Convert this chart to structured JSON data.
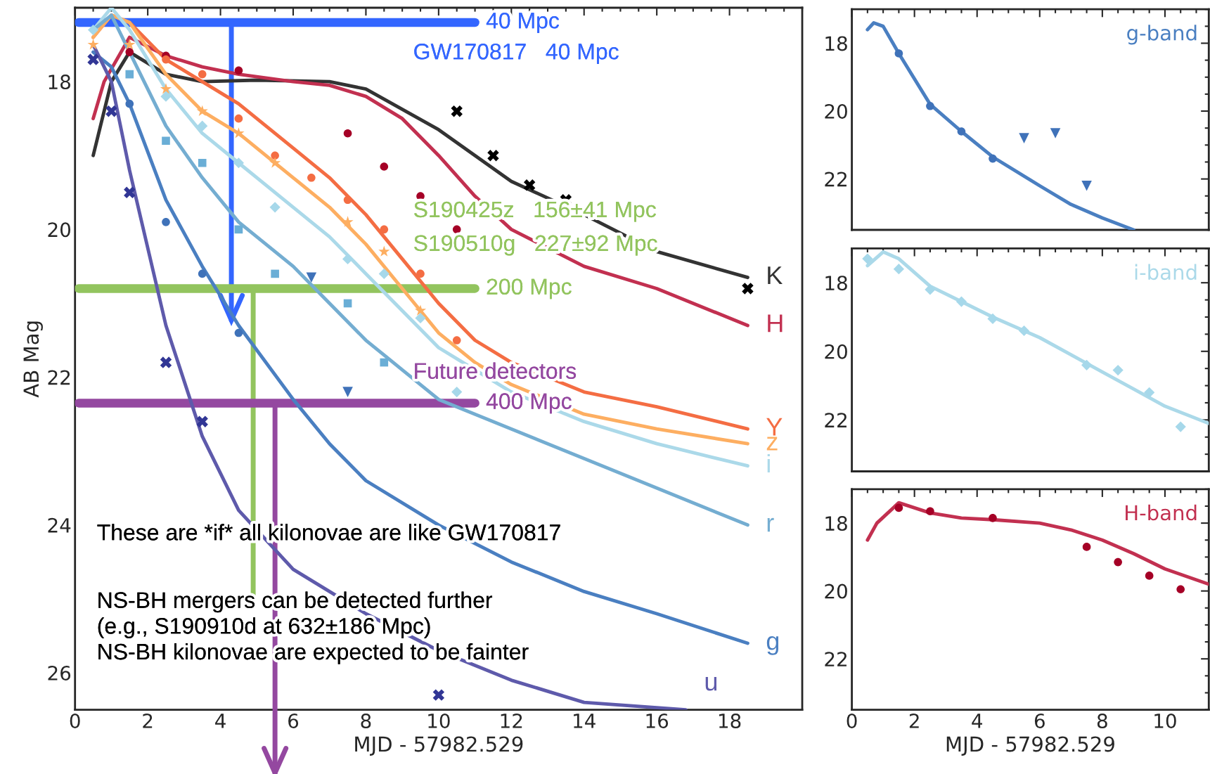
{
  "chart_data": [
    {
      "type": "line",
      "xlabel": "MJD - 57982.529",
      "ylabel": "AB Mag",
      "xlim": [
        0,
        20
      ],
      "ylim": [
        26.5,
        17
      ],
      "xticks": [
        0,
        2,
        4,
        6,
        8,
        10,
        12,
        14,
        16,
        18
      ],
      "yticks": [
        18,
        20,
        22,
        24,
        26
      ],
      "grid": false,
      "legend": "right",
      "series": [
        {
          "name": "K",
          "color": "#333333",
          "x": [
            0.5,
            1,
            1.5,
            2.5,
            3.5,
            5,
            7,
            8,
            10,
            11,
            12,
            14,
            16,
            18.5
          ],
          "values": [
            19.0,
            18.0,
            17.6,
            17.9,
            18.0,
            17.98,
            18.0,
            18.1,
            18.65,
            19.0,
            19.35,
            19.8,
            20.3,
            20.65
          ]
        },
        {
          "name": "H",
          "color": "#c23050",
          "x": [
            0.5,
            0.8,
            1.5,
            2.5,
            3.5,
            4.5,
            6,
            7,
            8,
            9,
            10,
            11,
            12,
            14,
            16,
            18.5
          ],
          "values": [
            18.5,
            18.0,
            17.4,
            17.65,
            17.8,
            17.9,
            18.0,
            18.05,
            18.2,
            18.5,
            19.0,
            19.55,
            20.0,
            20.5,
            20.8,
            21.3
          ]
        },
        {
          "name": "Y",
          "color": "#f46d43",
          "x": [
            0.5,
            1,
            1.5,
            2.5,
            3.5,
            4.5,
            6,
            7,
            8,
            9,
            10,
            11,
            12,
            14,
            16,
            18.5
          ],
          "values": [
            17.4,
            17.1,
            17.2,
            17.7,
            18.0,
            18.3,
            18.9,
            19.3,
            19.8,
            20.4,
            21.0,
            21.5,
            21.8,
            22.2,
            22.4,
            22.7
          ]
        },
        {
          "name": "z",
          "color": "#fdae61",
          "x": [
            0.5,
            1,
            1.5,
            2.5,
            3.5,
            4.5,
            6,
            7,
            8,
            9,
            10,
            11,
            12,
            14,
            16,
            18.5
          ],
          "values": [
            17.4,
            17.1,
            17.2,
            17.9,
            18.4,
            18.7,
            19.3,
            19.7,
            20.2,
            20.8,
            21.4,
            21.8,
            22.1,
            22.5,
            22.7,
            22.9
          ]
        },
        {
          "name": "i",
          "color": "#abd9e9",
          "x": [
            0.5,
            1,
            1.5,
            2.5,
            3.5,
            4.5,
            6,
            7,
            8,
            9,
            10,
            11,
            12,
            14,
            16,
            18.5
          ],
          "values": [
            17.3,
            17.0,
            17.3,
            18.1,
            18.7,
            19.1,
            19.7,
            20.1,
            20.6,
            21.1,
            21.6,
            21.9,
            22.2,
            22.6,
            22.9,
            23.2
          ]
        },
        {
          "name": "r",
          "color": "#74add1",
          "x": [
            0.5,
            1,
            1.5,
            2.5,
            3.5,
            4.5,
            6,
            7,
            8,
            9,
            10,
            12,
            14,
            16,
            18.5
          ],
          "values": [
            17.3,
            17.1,
            17.6,
            18.6,
            19.3,
            19.9,
            20.5,
            21.0,
            21.5,
            21.9,
            22.3,
            22.7,
            23.1,
            23.5,
            24.0
          ]
        },
        {
          "name": "g",
          "color": "#4a7fc1",
          "x": [
            0.5,
            1,
            1.5,
            2.5,
            3.5,
            4.5,
            6,
            7,
            8,
            10,
            12,
            14,
            16,
            18.5
          ],
          "values": [
            17.6,
            17.8,
            18.3,
            19.6,
            20.5,
            21.3,
            22.3,
            22.9,
            23.4,
            24.0,
            24.5,
            24.9,
            25.2,
            25.6
          ]
        },
        {
          "name": "u",
          "color": "#5e5aab",
          "x": [
            0.5,
            1,
            1.5,
            2.5,
            3.5,
            4.5,
            6,
            8,
            10,
            12,
            14,
            16.8
          ],
          "values": [
            17.5,
            18.0,
            19.2,
            21.3,
            22.8,
            23.8,
            24.6,
            25.2,
            25.7,
            26.1,
            26.4,
            26.5
          ]
        },
        {
          "type": "scatter",
          "marker": "cross",
          "color": "#000000",
          "x": [
            10.5,
            11.5,
            12.5,
            13.5,
            18.5
          ],
          "values": [
            18.4,
            19.0,
            19.4,
            19.6,
            20.8
          ]
        },
        {
          "type": "scatter",
          "marker": "circle",
          "color": "#a50026",
          "x": [
            1.5,
            2.5,
            4.5,
            7.5,
            8.5,
            9.5,
            10.5
          ],
          "values": [
            17.6,
            17.65,
            17.85,
            18.7,
            19.15,
            19.55,
            20.0
          ]
        },
        {
          "type": "scatter",
          "marker": "circle",
          "color": "#f46d43",
          "x": [
            2.5,
            3.5,
            4.5,
            5.5,
            6.5,
            7.5,
            8.5,
            9.5,
            10.5
          ],
          "values": [
            17.7,
            17.9,
            18.5,
            19.0,
            19.3,
            19.6,
            20.0,
            20.6,
            21.5
          ]
        },
        {
          "type": "scatter",
          "marker": "star",
          "color": "#fdae61",
          "x": [
            0.5,
            1.5,
            2.5,
            3.5,
            4.5,
            5.5,
            7.5,
            8.5,
            9.5
          ],
          "values": [
            17.5,
            17.5,
            18.1,
            18.4,
            18.7,
            19.1,
            19.9,
            20.3,
            21.1
          ]
        },
        {
          "type": "scatter",
          "marker": "diamond",
          "color": "#a6d8ea",
          "x": [
            0.5,
            2.5,
            3.5,
            4.5,
            5.5,
            7.5,
            8.5,
            9.5,
            10.5
          ],
          "values": [
            17.3,
            18.2,
            18.6,
            19.1,
            19.7,
            20.4,
            20.6,
            21.2,
            22.2
          ]
        },
        {
          "type": "scatter",
          "marker": "square",
          "color": "#6aaed6",
          "x": [
            1.5,
            2.5,
            3.5,
            4.5,
            5.5,
            7.5,
            8.5
          ],
          "values": [
            17.9,
            18.8,
            19.1,
            20.0,
            20.6,
            21.0,
            21.8
          ]
        },
        {
          "type": "scatter",
          "marker": "circle",
          "color": "#3f72b9",
          "x": [
            1.5,
            2.5,
            3.5,
            4.5
          ],
          "values": [
            18.3,
            19.9,
            20.6,
            21.4
          ]
        },
        {
          "type": "scatter",
          "marker": "triangle",
          "color": "#3f72b9",
          "x": [
            6.5,
            7.5
          ],
          "values": [
            20.65,
            22.2
          ]
        },
        {
          "type": "scatter",
          "marker": "cross",
          "color": "#313695",
          "x": [
            0.5,
            1,
            1.5,
            2.5,
            3.5,
            10
          ],
          "values": [
            17.7,
            18.4,
            19.5,
            21.8,
            22.6,
            26.3
          ]
        }
      ],
      "ref_lines": [
        {
          "axis": "y",
          "value": 17.2,
          "label": "40 Mpc",
          "color": "#3366ff"
        },
        {
          "axis": "y",
          "value": 20.8,
          "label": "200 Mpc",
          "color": "#92c45e"
        },
        {
          "axis": "y",
          "value": 22.35,
          "label": "400 Mpc",
          "color": "#9448a0"
        }
      ],
      "annotations": [
        "GW170817   40 Mpc",
        "S190425z   156±41 Mpc",
        "S190510g   227±92 Mpc",
        "Future detectors",
        "These are *if* all kilonovae are like GW170817",
        "NS-BH mergers can be detected further\n(e.g., S190910d at 632±186 Mpc)\nNS-BH kilonovae are expected to be fainter"
      ]
    },
    {
      "type": "line",
      "title": "g-band",
      "xlim": [
        0,
        11.4
      ],
      "ylim": [
        23.5,
        17
      ],
      "xticks": [
        0,
        2,
        4,
        6,
        8,
        10
      ],
      "yticks": [
        18,
        20,
        22
      ],
      "tick_labels": "y",
      "grid": false,
      "legend": false,
      "series": [
        {
          "color": "#4a7fc1",
          "x": [
            0.5,
            0.7,
            1,
            1.5,
            2.5,
            3.5,
            4.5,
            6,
            7,
            8,
            9
          ],
          "values": [
            17.6,
            17.4,
            17.5,
            18.3,
            19.8,
            20.6,
            21.35,
            22.2,
            22.75,
            23.15,
            23.5
          ]
        },
        {
          "type": "scatter",
          "marker": "circle",
          "color": "#3f72b9",
          "x": [
            1.5,
            2.5,
            3.5,
            4.5
          ],
          "values": [
            18.3,
            19.85,
            20.6,
            21.4
          ]
        },
        {
          "type": "scatter",
          "marker": "triangle",
          "color": "#3f72b9",
          "x": [
            5.5,
            6.5,
            7.5
          ],
          "values": [
            20.8,
            20.65,
            22.2
          ]
        }
      ]
    },
    {
      "type": "line",
      "title": "i-band",
      "xlim": [
        0,
        11.4
      ],
      "ylim": [
        23.5,
        17
      ],
      "xticks": [
        0,
        2,
        4,
        6,
        8,
        10
      ],
      "yticks": [
        18,
        20,
        22
      ],
      "tick_labels": "y",
      "grid": false,
      "legend": false,
      "series": [
        {
          "color": "#abd9e9",
          "x": [
            0.5,
            1,
            1.5,
            2.5,
            3.5,
            4.5,
            6,
            7,
            8,
            9,
            10,
            11.4
          ],
          "values": [
            17.5,
            17.1,
            17.3,
            18.1,
            18.55,
            19.0,
            19.6,
            20.1,
            20.6,
            21.1,
            21.6,
            22.1
          ]
        },
        {
          "type": "scatter",
          "marker": "diamond",
          "color": "#a6d8ea",
          "x": [
            0.5,
            1.5,
            2.5,
            3.5,
            4.5,
            5.5,
            7.5,
            8.5,
            9.5,
            10.5
          ],
          "values": [
            17.3,
            17.6,
            18.2,
            18.55,
            19.05,
            19.4,
            20.4,
            20.55,
            21.2,
            22.2
          ]
        }
      ]
    },
    {
      "type": "line",
      "title": "H-band",
      "xlabel": "MJD - 57982.529",
      "xlim": [
        0,
        11.4
      ],
      "ylim": [
        23.5,
        17
      ],
      "xticks": [
        0,
        2,
        4,
        6,
        8,
        10
      ],
      "yticks": [
        18,
        20,
        22
      ],
      "grid": false,
      "legend": false,
      "series": [
        {
          "color": "#c23050",
          "x": [
            0.5,
            0.8,
            1.5,
            2.5,
            3.5,
            4.5,
            6,
            7,
            8,
            9,
            10,
            11.4
          ],
          "values": [
            18.5,
            18.0,
            17.4,
            17.7,
            17.85,
            17.9,
            18.0,
            18.2,
            18.5,
            18.9,
            19.35,
            19.8
          ]
        },
        {
          "type": "scatter",
          "marker": "circle",
          "color": "#a50026",
          "x": [
            1.5,
            2.5,
            4.5,
            7.5,
            8.5,
            9.5,
            10.5
          ],
          "values": [
            17.55,
            17.65,
            17.85,
            18.7,
            19.15,
            19.55,
            19.95
          ]
        }
      ]
    }
  ]
}
